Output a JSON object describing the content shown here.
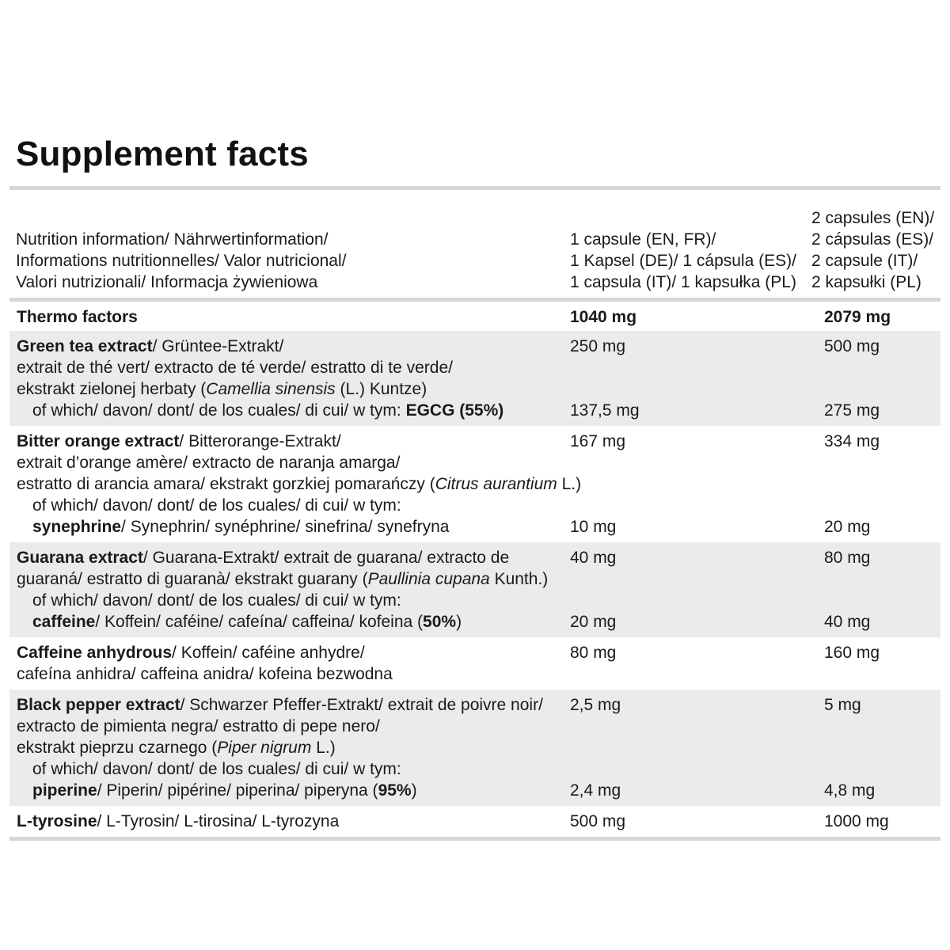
{
  "title": "Supplement facts",
  "header": {
    "col1": [
      "Nutrition information/ Nährwertinformation/",
      "Informations nutritionnelles/ Valor nutricional/",
      "Valori nutrizionali/ Informacja żywieniowa"
    ],
    "col2": [
      "1 capsule (EN, FR)/",
      "1 Kapsel (DE)/ 1 cápsula (ES)/",
      "1 capsula (IT)/ 1 kapsułka (PL)"
    ],
    "col3": [
      "2 capsules (EN)/",
      "2 cápsulas (ES)/",
      "2 capsule (IT)/",
      "2 kapsułki (PL)"
    ]
  },
  "rows": {
    "thermo": {
      "label": "Thermo factors",
      "v1": "1040 mg",
      "v2": "2079 mg"
    },
    "green_tea": {
      "l1_bold": "Green tea extract",
      "l1_rest": "/ Grüntee-Extrakt/",
      "l2": "extrait de thé vert/ extracto de té verde/ estratto di te verde/",
      "l3_a": "ekstrakt zielonej herbaty (",
      "l3_i": "Camellia sinensis",
      "l3_b": " (L.) Kuntze)",
      "l4_a": "of which/ davon/ dont/ de los cuales/ di cui/ w tym: ",
      "l4_bold": "EGCG (55%)",
      "v1": "250 mg",
      "v2": "500 mg",
      "v1b": "137,5 mg",
      "v2b": "275 mg"
    },
    "bitter_orange": {
      "l1_bold": "Bitter orange extract",
      "l1_rest": "/ Bitterorange-Extrakt/",
      "l2": "extrait d’orange amère/ extracto de naranja amarga/",
      "l3_a": "estratto di arancia amara/ ekstrakt gorzkiej pomarańczy (",
      "l3_i": "Citrus aurantium",
      "l3_b": " L.)",
      "l4": "of which/ davon/ dont/ de los cuales/ di cui/ w tym:",
      "l5_bold": "synephrine",
      "l5_rest": "/ Synephrin/ synéphrine/ sinefrina/ synefryna",
      "v1": "167 mg",
      "v2": "334 mg",
      "v1b": "10 mg",
      "v2b": "20 mg"
    },
    "guarana": {
      "l1_bold": "Guarana extract",
      "l1_rest": "/ Guarana-Extrakt/ extrait de guarana/ extracto de",
      "l2_a": "guaraná/ estratto di guaranà/ ekstrakt guarany (",
      "l2_i": "Paullinia cupana",
      "l2_b": " Kunth.)",
      "l3": "of which/ davon/ dont/ de los cuales/ di cui/ w tym:",
      "l4_bold": "caffeine",
      "l4_rest": "/ Koffein/ caféine/ cafeína/ caffeina/ kofeina (",
      "l4_bold2": "50%",
      "l4_end": ")",
      "v1": "40 mg",
      "v2": "80 mg",
      "v1b": "20 mg",
      "v2b": "40 mg"
    },
    "caffeine_anhydrous": {
      "l1_bold": "Caffeine anhydrous",
      "l1_rest": "/ Koffein/ caféine anhydre/",
      "l2": "cafeína anhidra/ caffeina anidra/ kofeina bezwodna",
      "v1": "80 mg",
      "v2": "160 mg"
    },
    "black_pepper": {
      "l1_bold": "Black pepper extract",
      "l1_rest": "/ Schwarzer Pfeffer-Extrakt/ extrait de poivre noir/",
      "l2": "extracto de pimienta negra/ estratto di pepe nero/",
      "l3_a": "ekstrakt pieprzu czarnego (",
      "l3_i": "Piper nigrum",
      "l3_b": " L.)",
      "l4": "of which/ davon/ dont/ de los cuales/ di cui/ w tym:",
      "l5_bold": "piperine",
      "l5_rest": "/ Piperin/ pipérine/ piperina/ piperyna (",
      "l5_bold2": "95%",
      "l5_end": ")",
      "v1": "2,5 mg",
      "v2": "5 mg",
      "v1b": "2,4 mg",
      "v2b": "4,8 mg"
    },
    "tyrosine": {
      "l1_bold": "L-tyrosine",
      "l1_rest": "/ L-Tyrosin/ L-tirosina/ L-tyrozyna",
      "v1": "500 mg",
      "v2": "1000 mg"
    }
  }
}
